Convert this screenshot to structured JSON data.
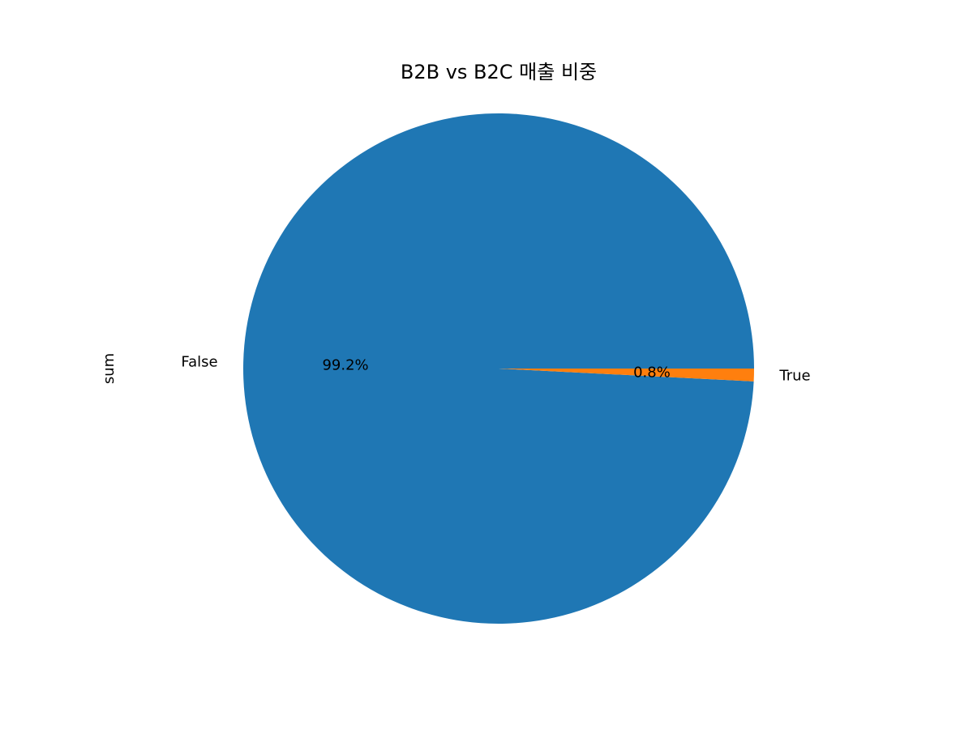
{
  "chart_data": {
    "type": "pie",
    "title": "B2B vs B2C 매출 비중",
    "ylabel": "sum",
    "categories": [
      "False",
      "True"
    ],
    "values": [
      99.2,
      0.8
    ],
    "percent_labels": [
      "99.2%",
      "0.8%"
    ],
    "colors": [
      "#1f77b4",
      "#ff7f0e"
    ],
    "start_angle_deg": 0,
    "direction": "counterclockwise"
  }
}
